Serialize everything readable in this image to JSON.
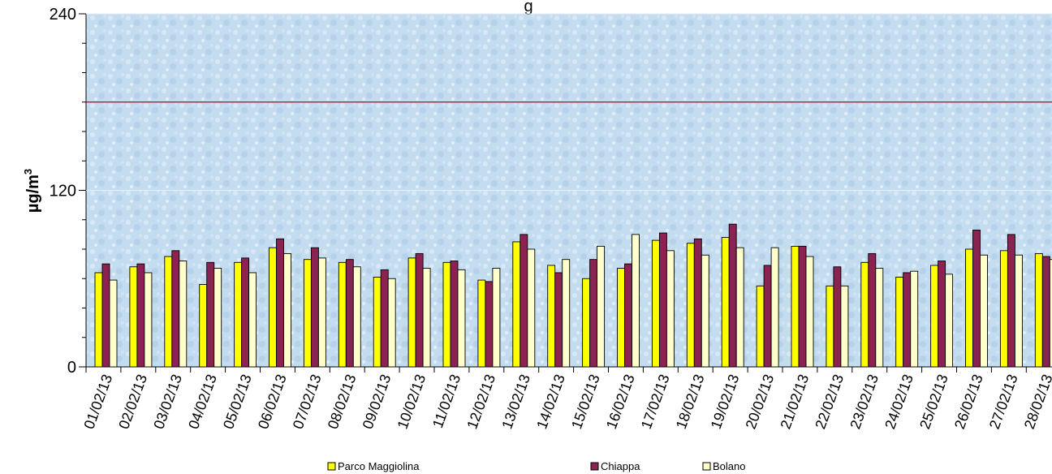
{
  "chart_data": {
    "type": "bar",
    "title": "g",
    "ylabel": "µg/m",
    "ylabel_superscript": "3",
    "ylim": [
      0,
      240
    ],
    "yticks": [
      "0",
      "120",
      "240"
    ],
    "limit_line": {
      "value": 180,
      "color": "#cc0000"
    },
    "categories": [
      "01/02/13",
      "02/02/13",
      "03/02/13",
      "04/02/13",
      "05/02/13",
      "06/02/13",
      "07/02/13",
      "08/02/13",
      "09/02/13",
      "10/02/13",
      "11/02/13",
      "12/02/13",
      "13/02/13",
      "14/02/13",
      "15/02/13",
      "16/02/13",
      "17/02/13",
      "18/02/13",
      "19/02/13",
      "20/02/13",
      "21/02/13",
      "22/02/13",
      "23/02/13",
      "24/02/13",
      "25/02/13",
      "26/02/13",
      "27/02/13",
      "28/02/13"
    ],
    "series": [
      {
        "name": "Parco Maggiolina",
        "color": "#ffff00",
        "values": [
          64,
          68,
          75,
          56,
          71,
          81,
          73,
          71,
          61,
          74,
          71,
          59,
          85,
          69,
          60,
          67,
          86,
          84,
          88,
          55,
          82,
          55,
          71,
          61,
          69,
          80,
          79,
          77
        ]
      },
      {
        "name": "Chiappa",
        "color": "#8b2252",
        "values": [
          70,
          70,
          79,
          71,
          74,
          87,
          81,
          73,
          66,
          77,
          72,
          58,
          90,
          64,
          73,
          70,
          91,
          87,
          97,
          69,
          82,
          68,
          77,
          64,
          72,
          93,
          90,
          75
        ]
      },
      {
        "name": "Bolano",
        "color": "#ffffcc",
        "values": [
          59,
          64,
          72,
          67,
          64,
          77,
          74,
          68,
          60,
          67,
          66,
          67,
          80,
          73,
          82,
          90,
          79,
          76,
          81,
          81,
          75,
          55,
          67,
          65,
          63,
          76,
          76,
          73
        ]
      }
    ],
    "legend_position": "bottom"
  }
}
